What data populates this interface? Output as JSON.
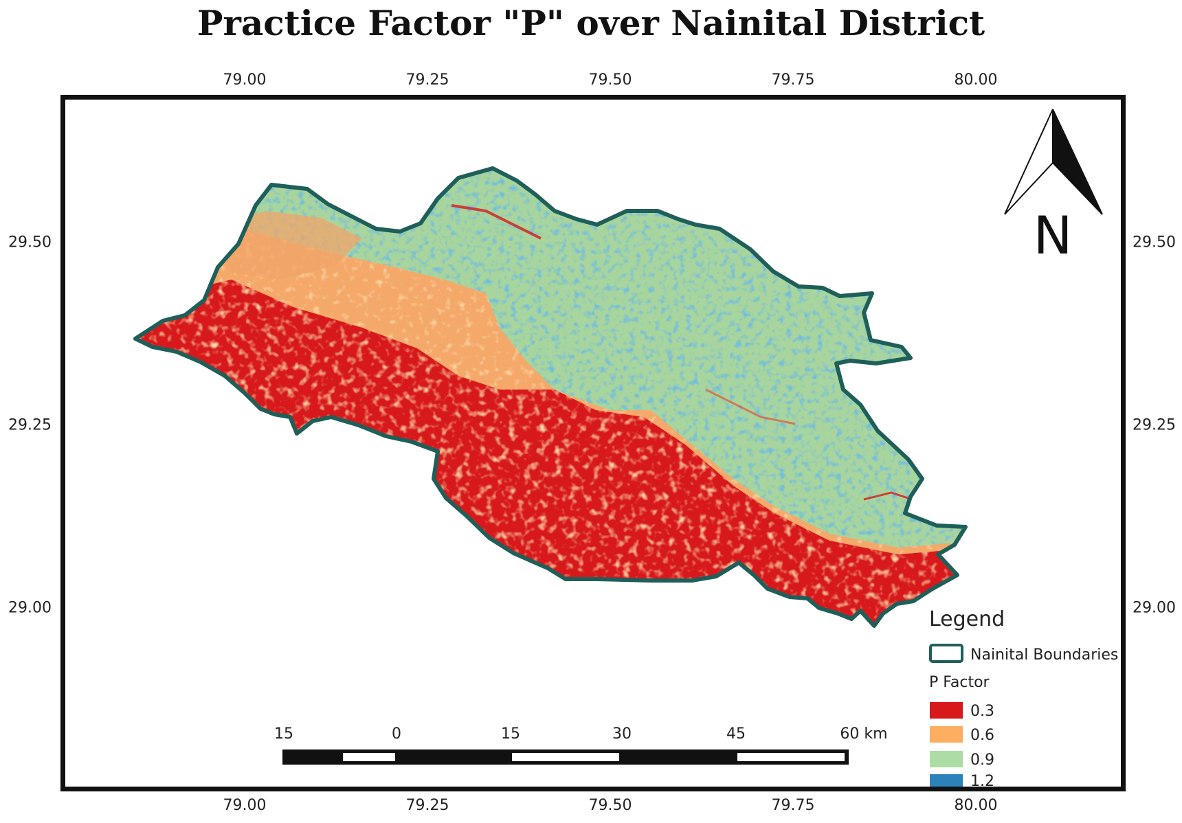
{
  "title": "Practice Factor \"P\" over Nainital District",
  "axes": {
    "x_ticks": [
      "79.00",
      "79.25",
      "79.50",
      "79.75",
      "80.00"
    ],
    "y_ticks": [
      "29.50",
      "29.25",
      "29.00"
    ]
  },
  "north_arrow": {
    "label": "N",
    "icon": "north-arrow-icon"
  },
  "legend": {
    "title": "Legend",
    "boundary_label": "Nainital Boundaries",
    "boundary_color": "#1f5f5a",
    "factor_title": "P Factor",
    "classes": [
      {
        "label": "0.3",
        "color": "#d7191c"
      },
      {
        "label": "0.6",
        "color": "#fdae61"
      },
      {
        "label": "0.9",
        "color": "#abdda4"
      },
      {
        "label": "1.2",
        "color": "#2b83ba"
      }
    ]
  },
  "scale_bar": {
    "labels": [
      "15",
      "0",
      "15",
      "30",
      "45",
      "60 km"
    ]
  }
}
